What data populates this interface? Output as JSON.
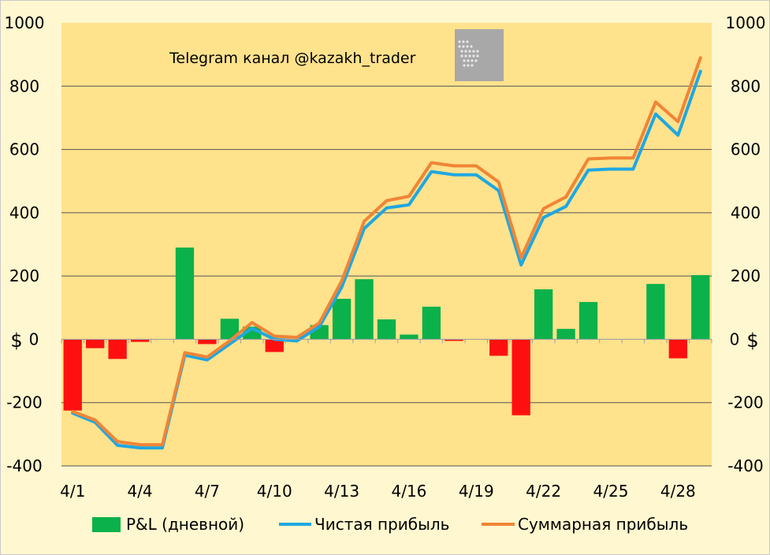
{
  "chart_data": {
    "type": "bar+line",
    "title": "",
    "watermark": "Telegram канал @kazakh_trader",
    "logo_text": "APPLIED ECONOMICS RESEARCH CENTRE",
    "xlabel": "",
    "ylabel": "$",
    "ylabel_right": "$",
    "ylim": [
      -400,
      1000
    ],
    "yticks": [
      -400,
      -200,
      0,
      200,
      400,
      600,
      800,
      1000
    ],
    "ytick_labels": [
      "-400",
      "-200",
      "0",
      "200",
      "400",
      "600",
      "800",
      "1000"
    ],
    "x_tick_labels": [
      "4/1",
      "4/4",
      "4/7",
      "4/10",
      "4/13",
      "4/16",
      "4/19",
      "4/22",
      "4/25",
      "4/28"
    ],
    "x_tick_every": 3,
    "x": [
      "4/1",
      "4/2",
      "4/3",
      "4/4",
      "4/5",
      "4/6",
      "4/7",
      "4/8",
      "4/9",
      "4/10",
      "4/11",
      "4/12",
      "4/13",
      "4/14",
      "4/15",
      "4/16",
      "4/17",
      "4/18",
      "4/19",
      "4/20",
      "4/21",
      "4/22",
      "4/23",
      "4/24",
      "4/25",
      "4/26",
      "4/27",
      "4/28",
      "4/29"
    ],
    "grid": true,
    "legend_position": "bottom",
    "series": [
      {
        "name": "P&L (дневной)",
        "type": "bar",
        "values": [
          -225,
          -28,
          -62,
          -8,
          0,
          290,
          -15,
          65,
          40,
          -40,
          0,
          45,
          128,
          190,
          63,
          15,
          103,
          -5,
          0,
          -52,
          -240,
          158,
          33,
          118,
          0,
          0,
          175,
          -60,
          203
        ],
        "color": "#0bb14a",
        "negative_color": "#ff1010"
      },
      {
        "name": "Чистая прибыль",
        "type": "line",
        "values": [
          -233,
          -262,
          -335,
          -343,
          -343,
          -50,
          -65,
          -15,
          35,
          0,
          -5,
          40,
          165,
          350,
          415,
          425,
          530,
          520,
          520,
          470,
          235,
          385,
          420,
          535,
          538,
          538,
          712,
          645,
          847
        ],
        "color": "#1fa7e0"
      },
      {
        "name": "Суммарная прибыль",
        "type": "line",
        "values": [
          -228,
          -255,
          -323,
          -333,
          -333,
          -42,
          -56,
          -5,
          53,
          10,
          6,
          52,
          185,
          373,
          438,
          452,
          558,
          548,
          548,
          497,
          258,
          413,
          450,
          570,
          573,
          573,
          750,
          688,
          890
        ],
        "color": "#f08536"
      }
    ]
  }
}
